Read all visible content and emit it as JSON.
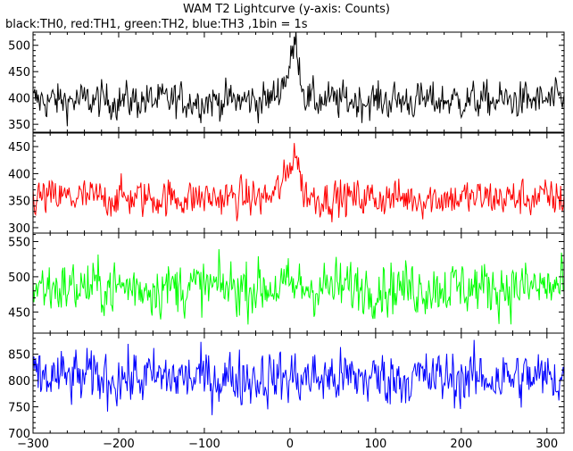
{
  "chart_data": {
    "type": "line",
    "title": "WAM T2 Lightcurve (y-axis: Counts)",
    "subtitle": "black:TH0, red:TH1, green:TH2, blue:TH3 ,1bin = 1s",
    "xlim": [
      -300,
      320
    ],
    "x_ticks": [
      -300,
      -200,
      -100,
      0,
      100,
      200,
      300
    ],
    "x_tick_labels": [
      "−300",
      "−200",
      "−100",
      "0",
      "100",
      "200",
      "300"
    ],
    "bin_seconds": 1,
    "panels": [
      {
        "series_name": "TH0",
        "color": "#000000",
        "ylim": [
          335,
          525
        ],
        "y_ticks": [
          350,
          400,
          450,
          500
        ],
        "baseline": 395,
        "noise": 20,
        "features": [
          {
            "x": 0,
            "amplitude": 50,
            "width": 10
          },
          {
            "x": 7,
            "amplitude": 70,
            "width": 4
          }
        ]
      },
      {
        "series_name": "TH1",
        "color": "#ff0000",
        "ylim": [
          290,
          475
        ],
        "y_ticks": [
          300,
          350,
          400,
          450
        ],
        "baseline": 355,
        "noise": 20,
        "features": [
          {
            "x": 0,
            "amplitude": 40,
            "width": 10
          },
          {
            "x": 6,
            "amplitude": 55,
            "width": 4
          }
        ]
      },
      {
        "series_name": "TH2",
        "color": "#00ff00",
        "ylim": [
          420,
          562
        ],
        "y_ticks": [
          450,
          500,
          550
        ],
        "baseline": 485,
        "noise": 22,
        "features": []
      },
      {
        "series_name": "TH3",
        "color": "#0000ff",
        "ylim": [
          700,
          890
        ],
        "y_ticks": [
          700,
          750,
          800,
          850
        ],
        "baseline": 805,
        "noise": 30,
        "features": []
      }
    ]
  }
}
